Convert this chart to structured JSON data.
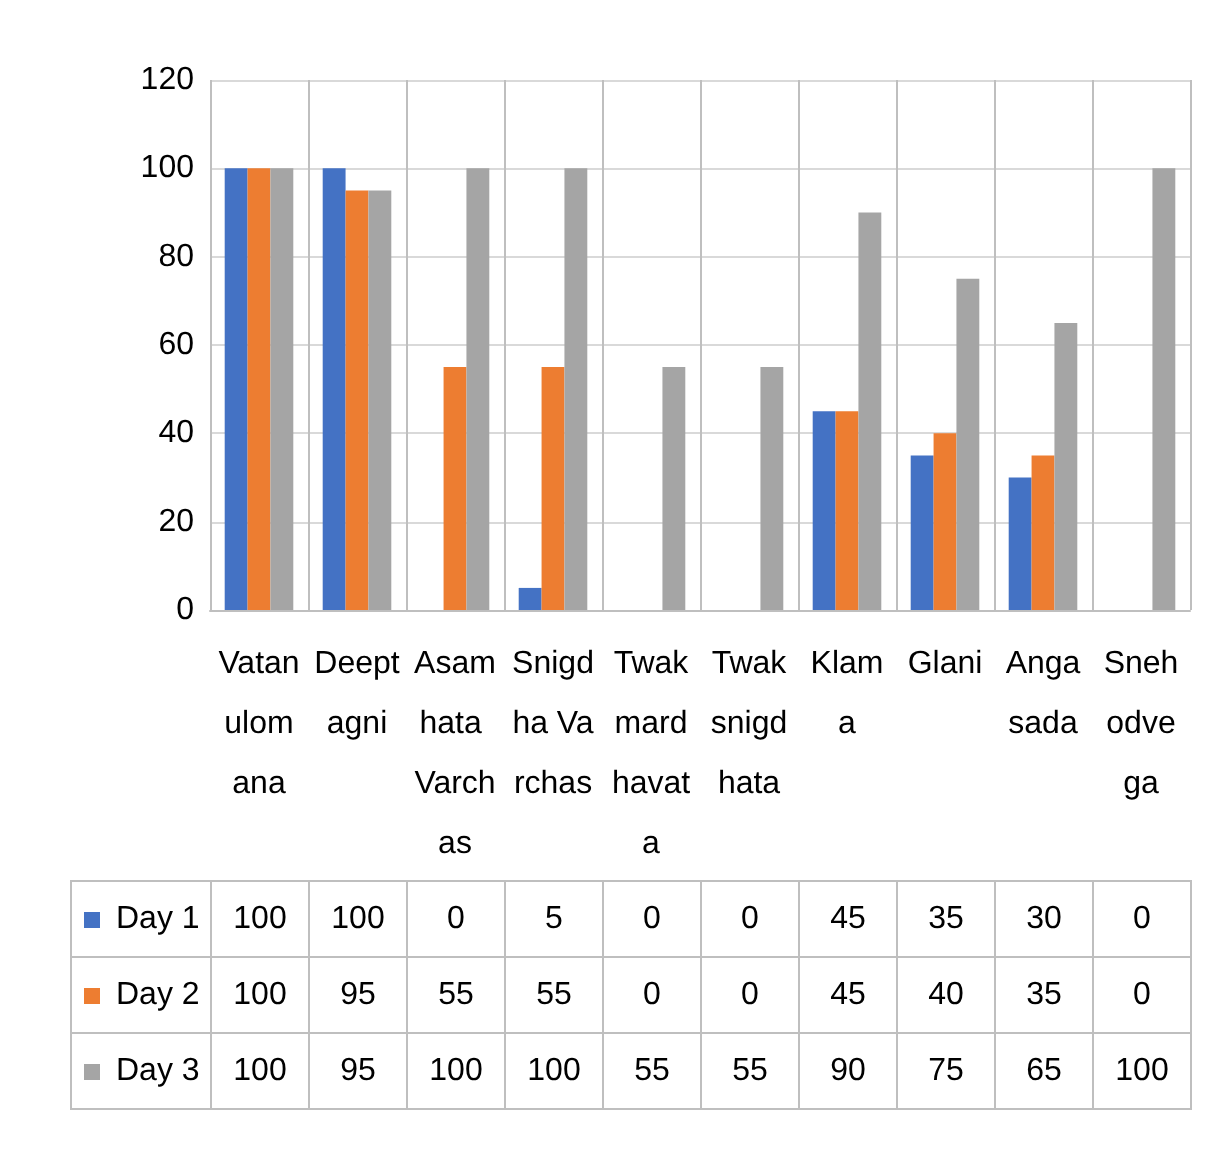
{
  "chart_data": {
    "type": "bar",
    "categories": [
      "Vatanulomana",
      "Deeptagni",
      "Asamhata Varchas",
      "Snigdha Varchas",
      "Twakmardhavata",
      "Twaksnigdhata",
      "Klama",
      "Glani",
      "Angasada",
      "Snehodvega"
    ],
    "series": [
      {
        "name": "Day 1",
        "color": "#4472c4",
        "values": [
          100,
          100,
          0,
          5,
          0,
          0,
          45,
          35,
          30,
          0
        ]
      },
      {
        "name": "Day 2",
        "color": "#ed7d31",
        "values": [
          100,
          95,
          55,
          55,
          0,
          0,
          45,
          40,
          35,
          0
        ]
      },
      {
        "name": "Day 3",
        "color": "#a5a5a5",
        "values": [
          100,
          95,
          100,
          100,
          55,
          55,
          90,
          75,
          65,
          100
        ]
      }
    ],
    "ylim": [
      0,
      120
    ],
    "yticks": [
      0,
      20,
      40,
      60,
      80,
      100,
      120
    ],
    "grid": "y",
    "legend": "bottom",
    "data_labels": true
  }
}
